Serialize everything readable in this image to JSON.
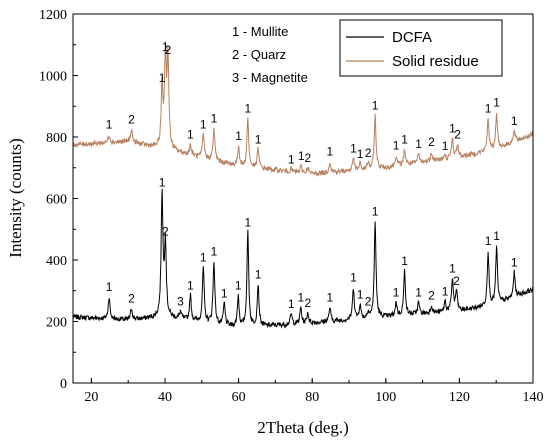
{
  "chart_data": {
    "type": "line",
    "xlabel": "2Theta (deg.)",
    "ylabel": "Intensity (counts)",
    "xlim": [
      15,
      140
    ],
    "ylim": [
      0,
      1200
    ],
    "xticks": [
      20,
      40,
      60,
      80,
      100,
      120,
      140
    ],
    "yticks": [
      0,
      200,
      400,
      600,
      800,
      1000,
      1200
    ],
    "legend_position": "top-right",
    "phase_key": [
      "1 - Mullite",
      "2 - Quarz",
      "3 - Magnetite"
    ],
    "series": [
      {
        "name": "DCFA",
        "color": "#000000",
        "baseline": [
          [
            15,
            215
          ],
          [
            30,
            205
          ],
          [
            40,
            215
          ],
          [
            60,
            180
          ],
          [
            80,
            195
          ],
          [
            100,
            215
          ],
          [
            120,
            235
          ],
          [
            130,
            255
          ],
          [
            140,
            305
          ]
        ],
        "peaks": [
          {
            "x": 24.8,
            "y": 280,
            "label": "1"
          },
          {
            "x": 30.9,
            "y": 242,
            "label": "2"
          },
          {
            "x": 39.2,
            "y": 620,
            "label": "1"
          },
          {
            "x": 40.1,
            "y": 460,
            "label": "2"
          },
          {
            "x": 44.2,
            "y": 232,
            "label": "3"
          },
          {
            "x": 46.9,
            "y": 285,
            "label": "1"
          },
          {
            "x": 50.4,
            "y": 375,
            "label": "1"
          },
          {
            "x": 53.3,
            "y": 395,
            "label": "1"
          },
          {
            "x": 56.1,
            "y": 258,
            "label": "1"
          },
          {
            "x": 59.9,
            "y": 285,
            "label": "1"
          },
          {
            "x": 62.5,
            "y": 490,
            "label": "1"
          },
          {
            "x": 65.3,
            "y": 320,
            "label": "1"
          },
          {
            "x": 74.3,
            "y": 225,
            "label": "1"
          },
          {
            "x": 76.9,
            "y": 245,
            "label": "1"
          },
          {
            "x": 78.8,
            "y": 228,
            "label": "2"
          },
          {
            "x": 84.8,
            "y": 245,
            "label": "1"
          },
          {
            "x": 91.2,
            "y": 310,
            "label": "1"
          },
          {
            "x": 93.0,
            "y": 255,
            "label": "1"
          },
          {
            "x": 95.2,
            "y": 232,
            "label": "2"
          },
          {
            "x": 97.1,
            "y": 525,
            "label": "1"
          },
          {
            "x": 102.8,
            "y": 262,
            "label": "1"
          },
          {
            "x": 105.1,
            "y": 365,
            "label": "1"
          },
          {
            "x": 108.9,
            "y": 262,
            "label": "1"
          },
          {
            "x": 112.4,
            "y": 252,
            "label": "2"
          },
          {
            "x": 116.1,
            "y": 265,
            "label": "1"
          },
          {
            "x": 118.1,
            "y": 340,
            "label": "1"
          },
          {
            "x": 119.2,
            "y": 300,
            "label": "2"
          },
          {
            "x": 127.8,
            "y": 430,
            "label": "1"
          },
          {
            "x": 130.1,
            "y": 445,
            "label": "1"
          },
          {
            "x": 134.9,
            "y": 360,
            "label": "1"
          }
        ]
      },
      {
        "name": "Solid residue",
        "color": "#b8805f",
        "baseline": [
          [
            15,
            775
          ],
          [
            30,
            785
          ],
          [
            40,
            760
          ],
          [
            60,
            705
          ],
          [
            80,
            680
          ],
          [
            100,
            700
          ],
          [
            120,
            735
          ],
          [
            130,
            760
          ],
          [
            140,
            810
          ]
        ],
        "peaks": [
          {
            "x": 24.8,
            "y": 808,
            "label": "1"
          },
          {
            "x": 30.9,
            "y": 825,
            "label": "2"
          },
          {
            "x": 39.2,
            "y": 960,
            "label": "1"
          },
          {
            "x": 40.1,
            "y": 1060,
            "label": "1"
          },
          {
            "x": 40.8,
            "y": 1050,
            "label": "2"
          },
          {
            "x": 46.9,
            "y": 775,
            "label": "1"
          },
          {
            "x": 50.4,
            "y": 808,
            "label": "1"
          },
          {
            "x": 53.3,
            "y": 828,
            "label": "1"
          },
          {
            "x": 60.0,
            "y": 770,
            "label": "1"
          },
          {
            "x": 62.5,
            "y": 860,
            "label": "1"
          },
          {
            "x": 65.3,
            "y": 760,
            "label": "1"
          },
          {
            "x": 74.3,
            "y": 695,
            "label": "1"
          },
          {
            "x": 77.0,
            "y": 705,
            "label": "1"
          },
          {
            "x": 78.8,
            "y": 700,
            "label": "2"
          },
          {
            "x": 84.8,
            "y": 720,
            "label": "1"
          },
          {
            "x": 91.2,
            "y": 730,
            "label": "1"
          },
          {
            "x": 93.0,
            "y": 712,
            "label": "1"
          },
          {
            "x": 95.2,
            "y": 715,
            "label": "2"
          },
          {
            "x": 97.1,
            "y": 870,
            "label": "1"
          },
          {
            "x": 102.8,
            "y": 740,
            "label": "1"
          },
          {
            "x": 105.1,
            "y": 760,
            "label": "1"
          },
          {
            "x": 108.9,
            "y": 745,
            "label": "1"
          },
          {
            "x": 112.4,
            "y": 752,
            "label": "2"
          },
          {
            "x": 116.1,
            "y": 738,
            "label": "1"
          },
          {
            "x": 118.1,
            "y": 795,
            "label": "1"
          },
          {
            "x": 119.5,
            "y": 775,
            "label": "2"
          },
          {
            "x": 127.8,
            "y": 860,
            "label": "1"
          },
          {
            "x": 130.1,
            "y": 880,
            "label": "1"
          },
          {
            "x": 134.9,
            "y": 820,
            "label": "1"
          }
        ]
      }
    ]
  }
}
